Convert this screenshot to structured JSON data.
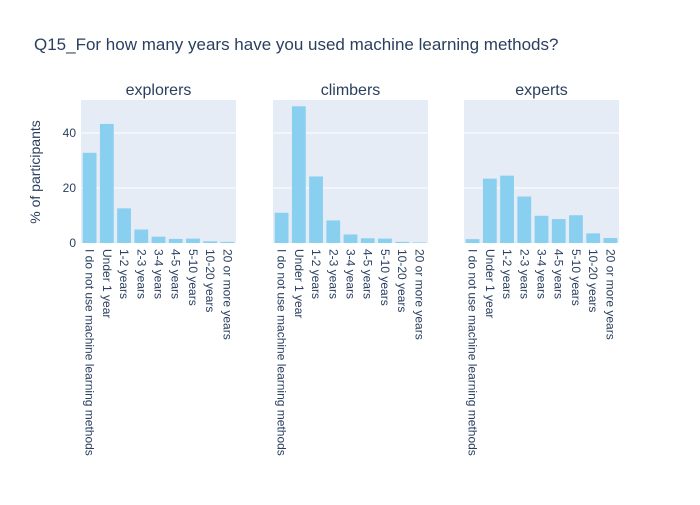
{
  "chart_data": {
    "type": "bar",
    "title": "Q15_For how many years have you used machine learning methods?",
    "ylabel": "% of participants",
    "xlabel": "",
    "ylim": [
      0,
      52
    ],
    "yticks": [
      0,
      20,
      40
    ],
    "grid": true,
    "shared_y": true,
    "categories": [
      "I do not use machine learning methods",
      "Under 1 year",
      "1-2 years",
      "2-3 years",
      "3-4 years",
      "4-5 years",
      "5-10 years",
      "10-20 years",
      "20 or more years"
    ],
    "series": [
      {
        "name": "explorers",
        "values": [
          32.8,
          43.3,
          12.6,
          4.9,
          2.3,
          1.5,
          1.6,
          0.6,
          0.4
        ]
      },
      {
        "name": "climbers",
        "values": [
          11.0,
          49.7,
          24.2,
          8.2,
          3.1,
          1.7,
          1.6,
          0.4,
          0.2
        ]
      },
      {
        "name": "experts",
        "values": [
          1.4,
          23.4,
          24.5,
          16.9,
          9.9,
          8.7,
          10.1,
          3.5,
          1.8
        ]
      }
    ],
    "colors": {
      "bar": "#89cff0",
      "plot_bg": "#e5ecf6",
      "grid": "#ffffff",
      "text": "#2a3f5f"
    }
  }
}
